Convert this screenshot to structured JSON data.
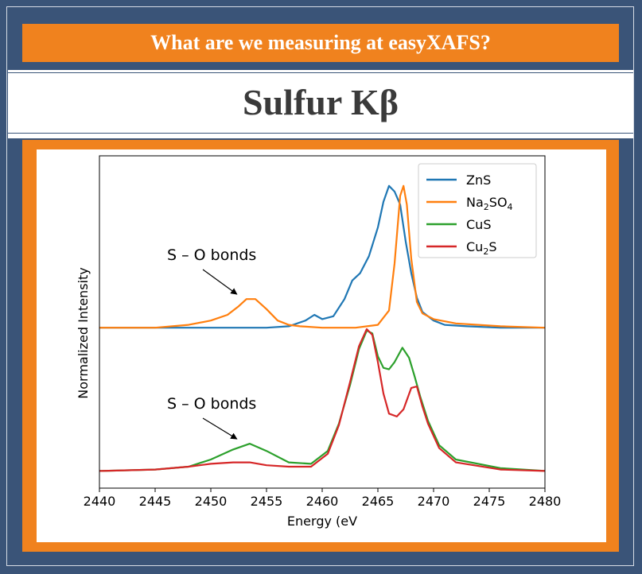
{
  "header": {
    "banner": "What are we measuring at easyXAFS?",
    "title": "Sulfur Kβ"
  },
  "colors": {
    "frame": "#3a5478",
    "accent": "#f0821e",
    "ZnS": "#1f77b4",
    "Na2SO4": "#ff7f0e",
    "CuS": "#2ca02c",
    "Cu2S": "#d62728"
  },
  "chart_data": {
    "type": "line",
    "xlabel": "Energy (eV",
    "ylabel": "Normalized Intensity",
    "xlim": [
      2440,
      2480
    ],
    "ylim": [
      -0.12,
      2.2
    ],
    "xticks": [
      "2440",
      "2445",
      "2450",
      "2455",
      "2460",
      "2465",
      "2470",
      "2475",
      "2480"
    ],
    "legend_position": "top-right",
    "annotations": [
      {
        "text": "S – O bonds",
        "arrow_to": [
          2453.2,
          1.2
        ]
      },
      {
        "text": "S – O bonds",
        "arrow_to": [
          2453.2,
          0.19
        ]
      }
    ],
    "series": [
      {
        "name": "ZnS",
        "legend": [
          "ZnS"
        ],
        "color": "#1f77b4",
        "x": [
          2440,
          2444,
          2448,
          2452,
          2455,
          2457,
          2458.5,
          2459.3,
          2460,
          2461,
          2462,
          2462.7,
          2463.4,
          2464.2,
          2465,
          2465.5,
          2466,
          2466.5,
          2467,
          2467.5,
          2468,
          2468.5,
          2469,
          2470,
          2471,
          2473,
          2476,
          2480
        ],
        "values": [
          1.0,
          1.0,
          1.0,
          1.0,
          1.0,
          1.01,
          1.05,
          1.09,
          1.06,
          1.08,
          1.2,
          1.33,
          1.38,
          1.5,
          1.7,
          1.88,
          1.99,
          1.95,
          1.86,
          1.6,
          1.38,
          1.21,
          1.11,
          1.05,
          1.02,
          1.01,
          1.0,
          1.0
        ]
      },
      {
        "name": "Na2SO4",
        "legend": [
          "Na",
          "2",
          "SO",
          "4"
        ],
        "color": "#ff7f0e",
        "x": [
          2440,
          2445,
          2448,
          2450,
          2451.5,
          2452.5,
          2453.2,
          2454,
          2455,
          2456,
          2457,
          2458,
          2460,
          2463,
          2465,
          2466,
          2466.5,
          2467,
          2467.3,
          2467.6,
          2468,
          2468.5,
          2469,
          2470,
          2472,
          2476,
          2480
        ],
        "values": [
          1.0,
          1.0,
          1.02,
          1.05,
          1.09,
          1.15,
          1.2,
          1.2,
          1.13,
          1.05,
          1.02,
          1.01,
          1.0,
          1.0,
          1.02,
          1.12,
          1.45,
          1.92,
          1.99,
          1.86,
          1.48,
          1.18,
          1.1,
          1.06,
          1.03,
          1.01,
          1.0
        ]
      },
      {
        "name": "CuS",
        "legend": [
          "CuS"
        ],
        "color": "#2ca02c",
        "x": [
          2440,
          2445,
          2448,
          2450,
          2452,
          2453.5,
          2455,
          2457,
          2459,
          2460.5,
          2461.5,
          2462.5,
          2463.3,
          2464,
          2464.5,
          2465,
          2465.5,
          2466,
          2466.5,
          2467.2,
          2467.8,
          2468.3,
          2468.8,
          2469.5,
          2470.5,
          2472,
          2476,
          2480
        ],
        "values": [
          0.0,
          0.01,
          0.03,
          0.08,
          0.15,
          0.19,
          0.14,
          0.06,
          0.05,
          0.14,
          0.33,
          0.6,
          0.85,
          0.98,
          0.96,
          0.8,
          0.72,
          0.71,
          0.76,
          0.86,
          0.79,
          0.66,
          0.52,
          0.35,
          0.18,
          0.08,
          0.02,
          0.0
        ]
      },
      {
        "name": "Cu2S",
        "legend": [
          "Cu",
          "2",
          "S"
        ],
        "color": "#d62728",
        "x": [
          2440,
          2445,
          2448,
          2450,
          2452,
          2453.5,
          2455,
          2457,
          2459,
          2460.5,
          2461.5,
          2462.5,
          2463.3,
          2464,
          2464.5,
          2465,
          2465.5,
          2466,
          2466.7,
          2467.3,
          2468,
          2468.5,
          2469,
          2469.5,
          2470.5,
          2472,
          2476,
          2480
        ],
        "values": [
          0.0,
          0.01,
          0.03,
          0.05,
          0.06,
          0.06,
          0.04,
          0.03,
          0.03,
          0.12,
          0.32,
          0.62,
          0.87,
          0.99,
          0.95,
          0.76,
          0.54,
          0.4,
          0.38,
          0.43,
          0.58,
          0.59,
          0.45,
          0.33,
          0.16,
          0.06,
          0.01,
          0.0
        ]
      }
    ]
  }
}
